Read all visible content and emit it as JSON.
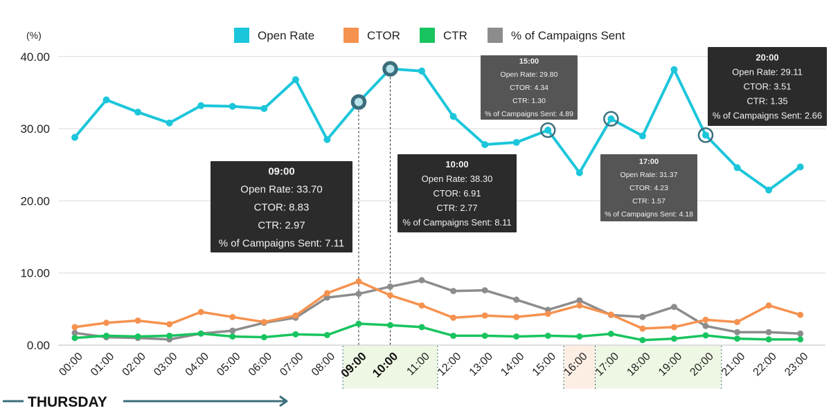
{
  "chart_data": {
    "type": "line",
    "ylabel": "(%)",
    "ylim": [
      0,
      40
    ],
    "y_ticks": [
      "0.00",
      "10.00",
      "20.00",
      "30.00",
      "40.00"
    ],
    "grid": "horizontal",
    "legend_position": "top",
    "categories": [
      "00:00",
      "01:00",
      "02:00",
      "03:00",
      "04:00",
      "05:00",
      "06:00",
      "07:00",
      "08:00",
      "09:00",
      "10:00",
      "11:00",
      "12:00",
      "13:00",
      "14:00",
      "15:00",
      "16:00",
      "17:00",
      "18:00",
      "19:00",
      "20:00",
      "21:00",
      "22:00",
      "23:00"
    ],
    "highlighted_categories": [
      "09:00",
      "10:00"
    ],
    "highlight_bands": [
      {
        "from": "09:00",
        "to": "11:00",
        "color": "#eef7e4"
      },
      {
        "from": "16:00",
        "to": "16:00",
        "color": "#fdeee4"
      },
      {
        "from": "17:00",
        "to": "20:00",
        "color": "#eef7e4"
      }
    ],
    "series": [
      {
        "name": "Open Rate",
        "color": "#1cc6da",
        "width": 4,
        "values": [
          28.8,
          34.0,
          32.3,
          30.8,
          33.2,
          33.1,
          32.8,
          36.8,
          28.5,
          33.7,
          38.3,
          38.0,
          31.7,
          27.8,
          28.1,
          29.8,
          23.9,
          31.37,
          29.0,
          38.2,
          29.11,
          24.6,
          21.5,
          24.7
        ]
      },
      {
        "name": "CTOR",
        "color": "#f5924f",
        "width": 3.5,
        "values": [
          2.5,
          3.1,
          3.4,
          2.9,
          4.6,
          3.9,
          3.2,
          4.1,
          7.2,
          8.83,
          6.91,
          5.5,
          3.8,
          4.1,
          3.9,
          4.34,
          5.5,
          4.23,
          2.3,
          2.5,
          3.51,
          3.2,
          5.5,
          4.2
        ]
      },
      {
        "name": "CTR",
        "color": "#18c45f",
        "width": 3.5,
        "values": [
          1.0,
          1.3,
          1.2,
          1.3,
          1.6,
          1.2,
          1.1,
          1.5,
          1.4,
          2.97,
          2.77,
          2.5,
          1.3,
          1.3,
          1.2,
          1.3,
          1.2,
          1.57,
          0.7,
          0.9,
          1.35,
          0.9,
          0.8,
          0.8
        ]
      },
      {
        "name": "% of Campaigns Sent",
        "color": "#8c8c8c",
        "width": 3.5,
        "values": [
          1.7,
          1.1,
          1.0,
          0.8,
          1.6,
          2.0,
          3.1,
          3.8,
          6.6,
          7.11,
          8.11,
          9.0,
          7.5,
          7.6,
          6.3,
          4.89,
          6.2,
          4.18,
          3.9,
          5.3,
          2.66,
          1.8,
          1.8,
          1.6
        ]
      }
    ],
    "tooltips": [
      {
        "hour": "09:00",
        "series": 0,
        "style": "large",
        "lines": [
          "09:00",
          "Open Rate: 33.70",
          "CTOR: 8.83",
          "CTR: 2.97",
          "% of Campaigns Sent: 7.11"
        ]
      },
      {
        "hour": "10:00",
        "series": 0,
        "style": "medium",
        "lines": [
          "10:00",
          "Open Rate: 38.30",
          "CTOR: 6.91",
          "CTR: 2.77",
          "% of Campaigns Sent: 8.11"
        ]
      },
      {
        "hour": "15:00",
        "series": 0,
        "style": "small",
        "lines": [
          "15:00",
          "Open Rate: 29.80",
          "CTOR: 4.34",
          "CTR: 1.30",
          "% of Campaigns Sent: 4.89"
        ]
      },
      {
        "hour": "17:00",
        "series": 0,
        "style": "small",
        "lines": [
          "17:00",
          "Open Rate: 31.37",
          "CTOR: 4.23",
          "CTR: 1.57",
          "% of Campaigns Sent: 4.18"
        ]
      },
      {
        "hour": "20:00",
        "series": 0,
        "style": "medium",
        "lines": [
          "20:00",
          "Open Rate: 29.11",
          "CTOR: 3.51",
          "CTR: 1.35",
          "% of Campaigns Sent: 2.66"
        ]
      }
    ],
    "day_label": "THURSDAY",
    "day_arrow_color": "#3b6e7c"
  }
}
